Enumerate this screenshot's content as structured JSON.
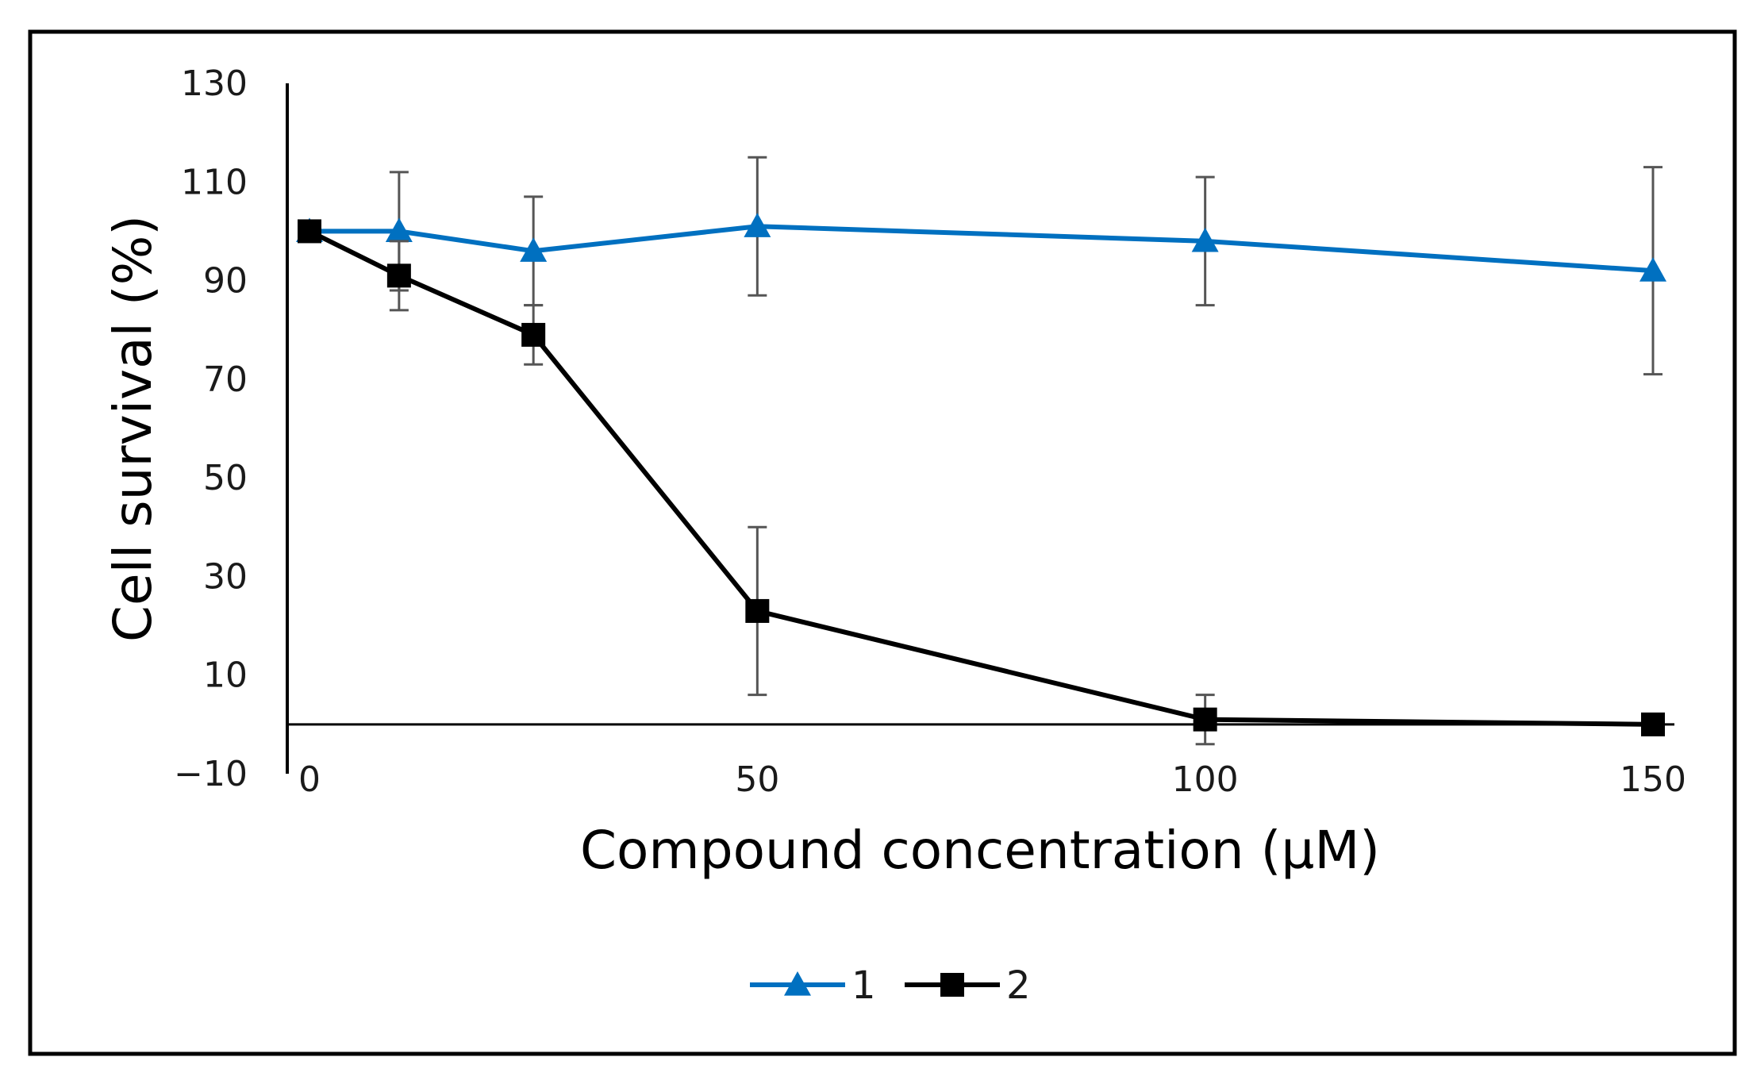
{
  "chart_data": {
    "type": "line",
    "title": "",
    "xlabel": "Compound concentration (µM)",
    "ylabel": "Cell survival (%)",
    "xlim": [
      0,
      150
    ],
    "ylim": [
      -10,
      130
    ],
    "x_ticks": [
      0,
      50,
      100,
      150
    ],
    "x_tick_labels": [
      "0",
      "50",
      "100",
      "150"
    ],
    "y_ticks": [
      -10,
      10,
      30,
      50,
      70,
      90,
      110,
      130
    ],
    "y_tick_labels": [
      "−10",
      "10",
      "30",
      "50",
      "70",
      "90",
      "110",
      "130"
    ],
    "grid": false,
    "legend_position": "bottom-center",
    "series": [
      {
        "name": "1",
        "color": "#0070C0",
        "marker": "triangle",
        "x": [
          0,
          10,
          25,
          50,
          100,
          150
        ],
        "values": [
          100,
          100,
          96,
          101,
          98,
          92
        ],
        "error": [
          0,
          12,
          11,
          14,
          13,
          21
        ]
      },
      {
        "name": "2",
        "color": "#000000",
        "marker": "square",
        "x": [
          0,
          10,
          25,
          50,
          100,
          150
        ],
        "values": [
          100,
          91,
          79,
          23,
          1,
          0
        ],
        "error": [
          0,
          7,
          6,
          17,
          5,
          0
        ]
      }
    ]
  }
}
